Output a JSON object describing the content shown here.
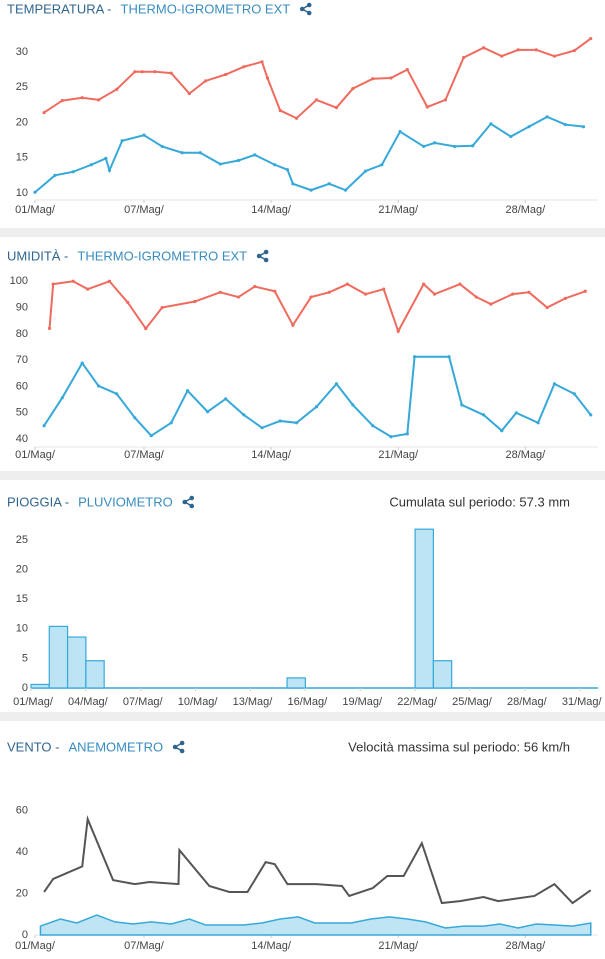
{
  "chart_data": [
    {
      "type": "line",
      "title": "TEMPERATURA -",
      "subtitle": "THERMO-IGROMETRO EXT",
      "xlim": [
        1,
        32
      ],
      "xticks": [
        {
          "value": 1,
          "label": "01/Mag/"
        },
        {
          "value": 7,
          "label": "07/Mag/"
        },
        {
          "value": 14,
          "label": "14/Mag/"
        },
        {
          "value": 21,
          "label": "21/Mag/"
        },
        {
          "value": 28,
          "label": "28/Mag/"
        }
      ],
      "ylim": [
        9,
        33
      ],
      "yticks": [
        10,
        15,
        20,
        25,
        30
      ],
      "series": [
        {
          "color": "#ef6b5e",
          "x": [
            1.5,
            2.5,
            3.6,
            4.5,
            5.5,
            6.5,
            6.9,
            7.6,
            8.5,
            9.5,
            10.4,
            11.5,
            12.5,
            13.5,
            13.8,
            14.5,
            15.4,
            16.5,
            17.6,
            18.5,
            19.6,
            20.6,
            21.5,
            22.6,
            23.6,
            24.6,
            25.7,
            26.7,
            27.6,
            28.6,
            29.6,
            30.7,
            31.6
          ],
          "values": [
            21.4,
            23.1,
            23.5,
            23.2,
            24.7,
            27.2,
            27.2,
            27.2,
            27.0,
            24.1,
            25.9,
            26.8,
            27.9,
            28.6,
            26.3,
            21.7,
            20.6,
            23.2,
            22.1,
            24.8,
            26.2,
            26.3,
            27.5,
            22.2,
            23.2,
            29.2,
            30.6,
            29.4,
            30.3,
            30.3,
            29.4,
            30.2,
            31.9
          ]
        },
        {
          "color": "#36a9d9",
          "x": [
            1.0,
            2.1,
            3.1,
            4.1,
            4.9,
            5.1,
            5.8,
            7.0,
            8.0,
            9.1,
            10.1,
            11.2,
            12.2,
            13.1,
            14.2,
            14.9,
            15.2,
            16.2,
            17.2,
            18.1,
            19.2,
            20.1,
            21.1,
            22.4,
            23.0,
            24.1,
            25.1,
            26.1,
            27.2,
            28.2,
            29.2,
            30.2,
            31.2
          ],
          "values": [
            10.1,
            12.5,
            13.0,
            14.0,
            14.9,
            13.2,
            17.4,
            18.2,
            16.6,
            15.7,
            15.7,
            14.1,
            14.6,
            15.4,
            14.0,
            13.3,
            11.3,
            10.4,
            11.3,
            10.4,
            13.1,
            14.0,
            18.7,
            16.6,
            17.1,
            16.6,
            16.7,
            19.8,
            18.0,
            19.4,
            20.8,
            19.7,
            19.4
          ]
        }
      ]
    },
    {
      "type": "line",
      "title": "UMIDITÀ -",
      "subtitle": "THERMO-IGROMETRO EXT",
      "xlim": [
        1,
        32
      ],
      "xticks": [
        {
          "value": 1,
          "label": "01/Mag/"
        },
        {
          "value": 7,
          "label": "07/Mag/"
        },
        {
          "value": 14,
          "label": "14/Mag/"
        },
        {
          "value": 21,
          "label": "21/Mag/"
        },
        {
          "value": 28,
          "label": "28/Mag/"
        }
      ],
      "ylim": [
        37,
        102
      ],
      "yticks": [
        40,
        50,
        60,
        70,
        80,
        90,
        100
      ],
      "series": [
        {
          "color": "#ef6b5e",
          "x": [
            1.8,
            2.0,
            3.1,
            3.9,
            5.1,
            6.1,
            7.1,
            8.0,
            9.8,
            11.2,
            12.2,
            13.1,
            14.2,
            15.2,
            16.2,
            17.2,
            18.2,
            19.2,
            20.2,
            21.0,
            22.4,
            23.0,
            24.4,
            25.3,
            26.1,
            27.3,
            28.2,
            29.2,
            30.2,
            31.3
          ],
          "values": [
            82.1,
            98.9,
            100,
            97,
            100,
            92,
            82,
            90,
            92.3,
            95.8,
            94,
            98,
            96.2,
            83.3,
            94,
            95.8,
            98.9,
            95.1,
            97,
            81,
            98.9,
            95.1,
            98.9,
            94,
            91.3,
            95.1,
            95.8,
            90,
            93.5,
            96.2
          ]
        },
        {
          "color": "#36a9d9",
          "x": [
            1.5,
            2.5,
            3.6,
            4.5,
            5.5,
            6.5,
            7.4,
            8.5,
            9.4,
            10.5,
            11.5,
            12.5,
            13.5,
            14.5,
            15.4,
            16.5,
            17.6,
            18.5,
            19.6,
            20.6,
            21.5,
            21.9,
            23.8,
            24.5,
            25.7,
            26.7,
            27.5,
            28.7,
            29.6,
            30.7,
            31.6
          ],
          "values": [
            45.1,
            55.7,
            68.9,
            60.2,
            57.2,
            48.1,
            41.3,
            46.2,
            58.4,
            50.4,
            55.3,
            49.2,
            44.3,
            46.9,
            46.2,
            52.3,
            61,
            53,
            45.1,
            40.9,
            42,
            71.3,
            71.3,
            53,
            49.2,
            43.2,
            50,
            46.2,
            61,
            57.2,
            49.2
          ]
        }
      ]
    },
    {
      "type": "bar",
      "title": "PIOGGIA -",
      "subtitle": "PLUVIOMETRO",
      "annotation": "Cumulata sul periodo: 57.3 mm",
      "categories": [
        "01/Mag/",
        null,
        null,
        "04/Mag/",
        null,
        null,
        "07/Mag/",
        null,
        null,
        "10/Mag/",
        null,
        null,
        "13/Mag/",
        null,
        null,
        "16/Mag/",
        null,
        null,
        "19/Mag/",
        null,
        null,
        "22/Mag/",
        null,
        null,
        "25/Mag/",
        null,
        null,
        "28/Mag/",
        null,
        null,
        "31/Mag/"
      ],
      "values": [
        0.6,
        10.4,
        8.6,
        4.6,
        0,
        0,
        0,
        0,
        0,
        0,
        0,
        0,
        0,
        0,
        1.7,
        0,
        0,
        0,
        0,
        0,
        0,
        26.8,
        4.6,
        0,
        0,
        0,
        0,
        0,
        0,
        0,
        0
      ],
      "color": "#bde4f4",
      "edge_color": "#36a9d9",
      "ylim": [
        0,
        27
      ],
      "yticks": [
        0,
        5,
        10,
        15,
        20,
        25
      ]
    },
    {
      "type": "line",
      "title": "VENTO -",
      "subtitle": "ANEMOMETRO",
      "annotation": "Velocità massima sul periodo: 56 km/h",
      "xlim": [
        1,
        32
      ],
      "xticks": [
        {
          "value": 1,
          "label": "01/Mag/"
        },
        {
          "value": 7,
          "label": "07/Mag/"
        },
        {
          "value": 14,
          "label": "14/Mag/"
        },
        {
          "value": 21,
          "label": "21/Mag/"
        },
        {
          "value": 28,
          "label": "28/Mag/"
        }
      ],
      "ylim": [
        0,
        65
      ],
      "yticks": [
        0,
        20,
        40,
        60
      ],
      "series": [
        {
          "color": "#555555",
          "x": [
            1.5,
            2.0,
            3.6,
            3.9,
            5.3,
            6.5,
            7.3,
            8.9,
            8.95,
            10.6,
            11.7,
            12.7,
            13.7,
            14.2,
            14.9,
            16.5,
            17.9,
            18.3,
            19.6,
            20.4,
            21.3,
            22.3,
            23.4,
            24.4,
            25.7,
            26.5,
            28.5,
            29.6,
            30.6,
            31.6
          ],
          "values": [
            20.7,
            27,
            33,
            55.8,
            26.4,
            24.5,
            25.5,
            24.5,
            40.9,
            23.6,
            20.7,
            20.7,
            35.1,
            34.1,
            24.5,
            24.5,
            23.6,
            18.8,
            22.6,
            28.4,
            28.4,
            44.2,
            15.4,
            16.3,
            18.3,
            16.3,
            18.8,
            24.5,
            15.4,
            21.6
          ]
        },
        {
          "color": "#36a9d9",
          "area": true,
          "area_color": "#bfe5f5",
          "x": [
            1.3,
            2.4,
            3.3,
            4.4,
            5.4,
            6.4,
            7.4,
            8.5,
            9.5,
            10.4,
            11.5,
            12.5,
            13.5,
            14.5,
            15.5,
            16.4,
            17.4,
            18.4,
            19.5,
            20.5,
            21.5,
            22.5,
            23.6,
            24.6,
            25.7,
            26.6,
            27.6,
            28.6,
            29.6,
            30.6,
            31.6
          ],
          "values": [
            4.3,
            7.7,
            5.8,
            9.6,
            6.3,
            5.3,
            6.3,
            5.3,
            7.7,
            4.8,
            4.8,
            4.8,
            5.8,
            7.7,
            8.7,
            5.8,
            5.8,
            5.8,
            7.7,
            8.7,
            7.7,
            6.3,
            3.4,
            4.3,
            4.3,
            5.3,
            3.4,
            5.3,
            4.8,
            4.3,
            5.8
          ]
        }
      ]
    }
  ]
}
